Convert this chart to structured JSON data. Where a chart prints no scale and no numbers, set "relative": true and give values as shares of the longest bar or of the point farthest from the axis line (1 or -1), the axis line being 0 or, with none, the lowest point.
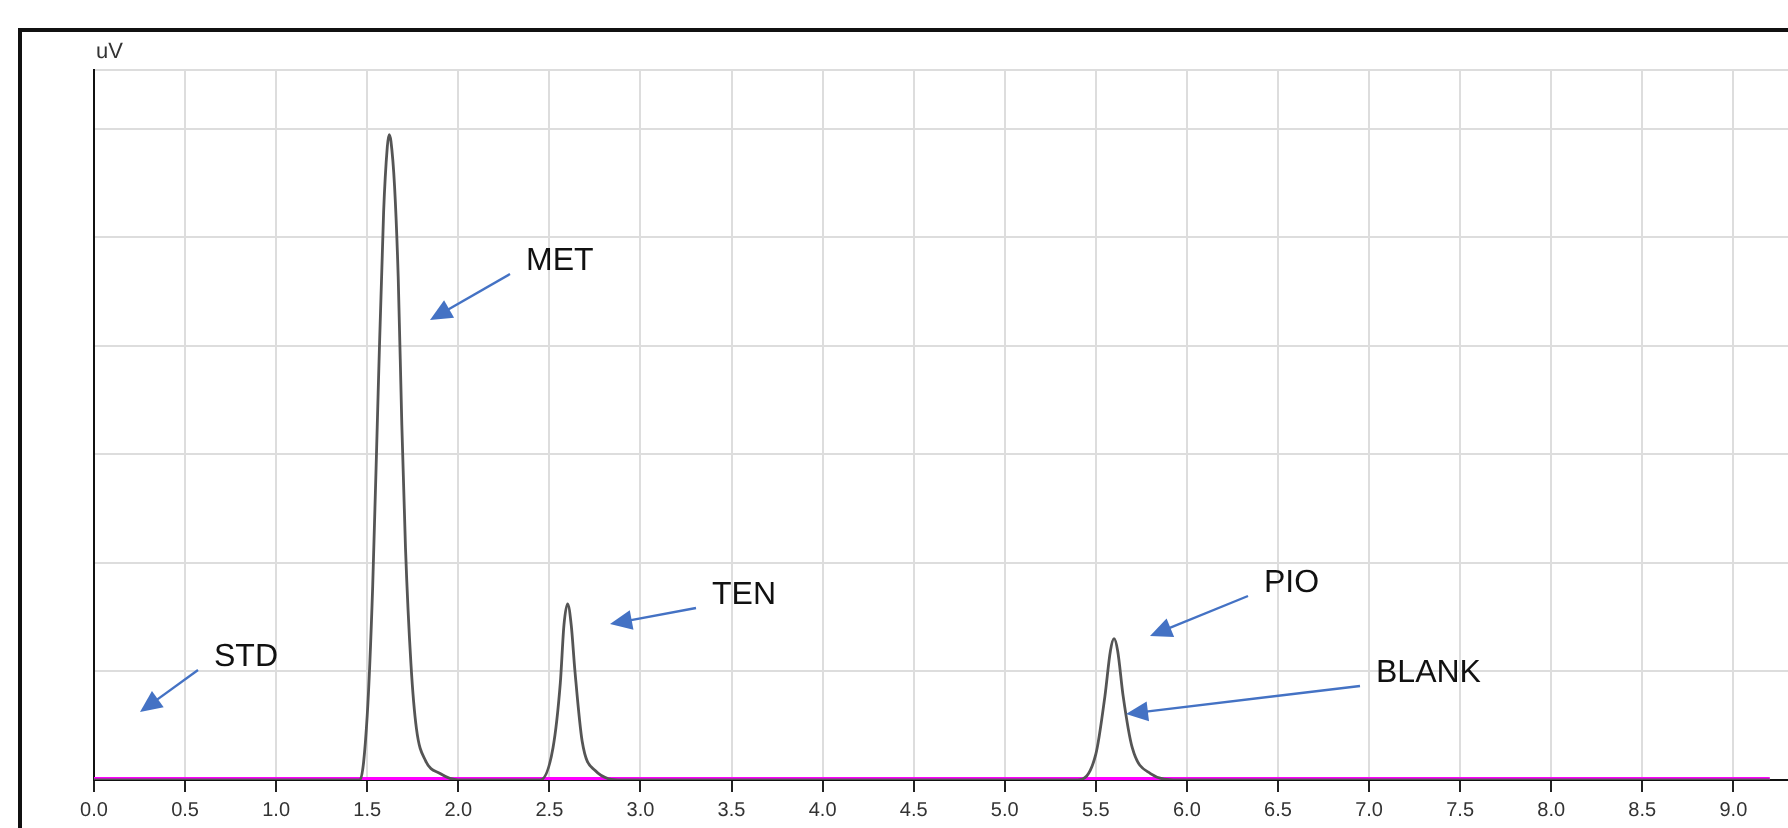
{
  "chart_data": {
    "type": "line",
    "ylabel": "uV",
    "relative": true,
    "grid": true,
    "legend": false,
    "marker": "none",
    "line_style": "solid",
    "xlim": [
      0,
      9.3
    ],
    "xticks": [
      {
        "value": 0,
        "label": "0.0"
      },
      {
        "value": 0.5,
        "label": "0.5"
      },
      {
        "value": 1,
        "label": "1.0"
      },
      {
        "value": 1.5,
        "label": "1.5"
      },
      {
        "value": 2,
        "label": "2.0"
      },
      {
        "value": 2.5,
        "label": "2.5"
      },
      {
        "value": 3,
        "label": "3.0"
      },
      {
        "value": 3.5,
        "label": "3.5"
      },
      {
        "value": 4,
        "label": "4.0"
      },
      {
        "value": 4.5,
        "label": "4.5"
      },
      {
        "value": 5,
        "label": "5.0"
      },
      {
        "value": 5.5,
        "label": "5.5"
      },
      {
        "value": 6,
        "label": "6.0"
      },
      {
        "value": 6.5,
        "label": "6.5"
      },
      {
        "value": 7,
        "label": "7.0"
      },
      {
        "value": 7.5,
        "label": "7.5"
      },
      {
        "value": 8,
        "label": "8.0"
      },
      {
        "value": 8.5,
        "label": "8.5"
      },
      {
        "value": 9,
        "label": "9.0"
      }
    ],
    "series": [
      {
        "color": "#ff00ff",
        "x": [
          0,
          9.2
        ],
        "values": [
          0,
          0
        ]
      },
      {
        "color": "#555555",
        "x": [
          0,
          1.46,
          1.5,
          1.53,
          1.56,
          1.59,
          1.61,
          1.62,
          1.63,
          1.65,
          1.67,
          1.69,
          1.71,
          1.74,
          1.77,
          1.82,
          1.9,
          2.0,
          2.45,
          2.52,
          2.56,
          2.58,
          2.6,
          2.62,
          2.64,
          2.68,
          2.75,
          2.9,
          5.4,
          5.5,
          5.55,
          5.58,
          5.6,
          5.62,
          5.65,
          5.7,
          5.8,
          5.95,
          9.2
        ],
        "values": [
          0,
          0,
          0.1,
          0.3,
          0.6,
          0.88,
          0.98,
          1,
          0.99,
          0.92,
          0.78,
          0.55,
          0.36,
          0.18,
          0.08,
          0.03,
          0.01,
          0,
          0,
          0.05,
          0.15,
          0.24,
          0.273,
          0.24,
          0.17,
          0.06,
          0.015,
          0,
          0,
          0.04,
          0.13,
          0.2,
          0.219,
          0.2,
          0.13,
          0.05,
          0.01,
          0,
          0
        ]
      }
    ],
    "annotations": [
      "STD",
      "MET",
      "TEN",
      "PIO",
      "BLANK"
    ]
  }
}
